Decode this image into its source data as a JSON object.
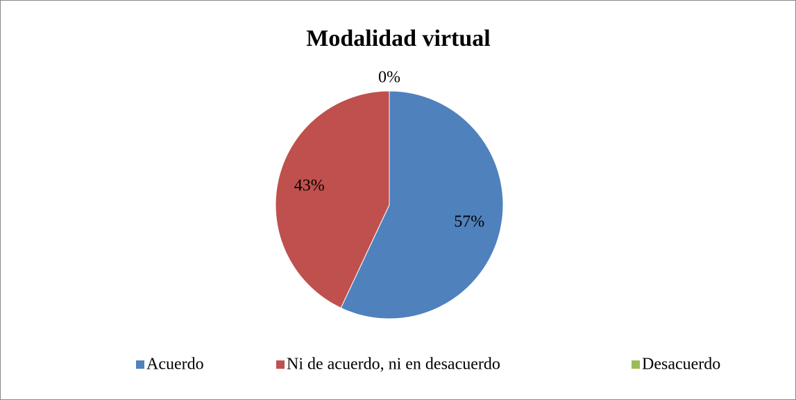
{
  "chart_data": {
    "type": "pie",
    "title": "Modalidad virtual",
    "categories": [
      "Acuerdo",
      "Ni de acuerdo, ni en desacuerdo",
      "Desacuerdo"
    ],
    "values": [
      57,
      43,
      0
    ],
    "value_labels": [
      "57%",
      "43%",
      "0%"
    ],
    "colors": [
      "#4f81bd",
      "#c0504d",
      "#9bbb59"
    ],
    "legend": "bottom"
  }
}
